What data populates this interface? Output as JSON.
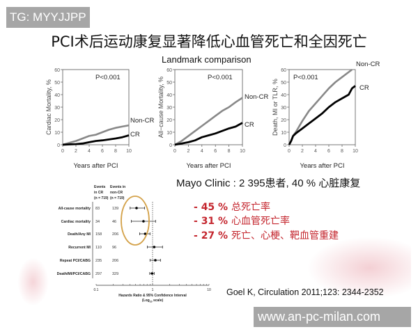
{
  "watermark_top": "TG: MYYJJPP",
  "watermark_bottom": "www.an-pc-milan.com",
  "title": "PCI术后运动康复显著降低心血管死亡和全因死亡",
  "subtitle": "Landmark comparison",
  "summary": {
    "headline": "Mayo Clinic : 2 395患者, 40 % 心脏康复",
    "bullets": [
      {
        "dash": "-",
        "value": "45 %",
        "text": "总死亡率"
      },
      {
        "dash": "-",
        "value": "31 %",
        "text": "心血管死亡率"
      },
      {
        "dash": "-",
        "value": "27 %",
        "text": "死亡、心梗、靶血管重建"
      }
    ],
    "accent_color": "#c4262e"
  },
  "citation": "Goel K, Circulation 2011;123: 2344-2352",
  "chart_data": [
    {
      "type": "line",
      "annotation": "P<0.001",
      "xlabel": "Years after PCI",
      "ylabel": "Cardiac Mortality, %",
      "xlim": [
        0,
        10
      ],
      "ylim": [
        0,
        60
      ],
      "xticks": [
        "0",
        "2",
        "4",
        "6",
        "8",
        "10"
      ],
      "yticks": [
        "0",
        "10",
        "20",
        "30",
        "40",
        "50",
        "60"
      ],
      "series": [
        {
          "name": "Non-CR",
          "color": "#888888",
          "x": [
            0,
            1,
            2,
            3,
            4,
            5,
            6,
            7,
            8,
            9,
            10
          ],
          "y": [
            0,
            1.5,
            3,
            5,
            7,
            8,
            10,
            12,
            13.5,
            14.5,
            15.5
          ]
        },
        {
          "name": "CR",
          "color": "#000000",
          "x": [
            0,
            1,
            2,
            3,
            4,
            5,
            6,
            7,
            8,
            9,
            10
          ],
          "y": [
            0,
            0.3,
            0.5,
            1,
            2,
            3,
            3.5,
            4.2,
            5,
            6,
            7.5
          ]
        }
      ]
    },
    {
      "type": "line",
      "annotation": "P<0.001",
      "xlabel": "Years after PCI",
      "ylabel": "All−cause Mortality, %",
      "xlim": [
        0,
        10
      ],
      "ylim": [
        0,
        60
      ],
      "xticks": [
        "0",
        "2",
        "4",
        "6",
        "8",
        "10"
      ],
      "yticks": [
        "0",
        "10",
        "20",
        "30",
        "40",
        "50",
        "60"
      ],
      "series": [
        {
          "name": "Non-CR",
          "color": "#888888",
          "x": [
            0,
            1,
            2,
            3,
            4,
            5,
            6,
            7,
            8,
            9,
            10
          ],
          "y": [
            0,
            3,
            7,
            11,
            15,
            19,
            23,
            27,
            30,
            34,
            37.5
          ]
        },
        {
          "name": "CR",
          "color": "#000000",
          "x": [
            0,
            1,
            2,
            3,
            4,
            5,
            6,
            7,
            8,
            9,
            10
          ],
          "y": [
            0,
            1,
            2,
            3.5,
            6,
            7.5,
            9,
            11,
            13,
            14.5,
            17.5
          ]
        }
      ]
    },
    {
      "type": "line",
      "annotation": "P<0.001",
      "xlabel": "Years after PCI",
      "ylabel": "Death, MI or TLR, %",
      "xlim": [
        0,
        10
      ],
      "ylim": [
        0,
        60
      ],
      "xticks": [
        "0",
        "2",
        "4",
        "6",
        "8",
        "10"
      ],
      "yticks": [
        "0",
        "10",
        "20",
        "30",
        "40",
        "50",
        "60"
      ],
      "series": [
        {
          "name": "Non-CR",
          "color": "#888888",
          "x": [
            0,
            0.3,
            0.6,
            1,
            2,
            3,
            4,
            5,
            6,
            7,
            8,
            9,
            9.5
          ],
          "y": [
            0,
            3,
            7,
            10,
            19,
            27,
            33,
            39,
            45,
            50,
            54,
            58,
            60
          ]
        },
        {
          "name": "CR",
          "color": "#000000",
          "x": [
            0,
            0.3,
            0.6,
            1,
            2,
            3,
            4,
            5,
            6,
            7,
            8,
            9,
            9.5,
            10
          ],
          "y": [
            0,
            3,
            7,
            9,
            13,
            17,
            21,
            25,
            30,
            34,
            37,
            40,
            45,
            47
          ]
        }
      ]
    },
    {
      "type": "forest",
      "xlabel": "Hazards Ratio & 95% Confidence Interval",
      "xlabel_sub": [
        "(Log",
        "10",
        " scale)"
      ],
      "xscale": "log",
      "xlim": [
        0.1,
        10
      ],
      "xticks": [
        "0.1",
        "1",
        "10"
      ],
      "column_headers": [
        [
          "Events",
          "in CR",
          "(n = 719)"
        ],
        [
          "Events in",
          "non-CR",
          "(n = 719)"
        ]
      ],
      "highlight_color": "#d4a24a",
      "rows": [
        {
          "label": "All-cause mortality",
          "events_cr": "83",
          "events_noncr": "139",
          "hr": 0.52,
          "ci": [
            0.4,
            0.72
          ]
        },
        {
          "label": "Cardiac mortality",
          "events_cr": "34",
          "events_noncr": "46",
          "hr": 0.69,
          "ci": [
            0.42,
            1.13
          ]
        },
        {
          "label": "Death/Any MI",
          "events_cr": "158",
          "events_noncr": "206",
          "hr": 0.74,
          "ci": [
            0.59,
            0.9
          ]
        },
        {
          "label": "Recurrent MI",
          "events_cr": "110",
          "events_noncr": "96",
          "hr": 1.07,
          "ci": [
            0.81,
            1.5
          ]
        },
        {
          "label": "Repeat PCI/CABG",
          "events_cr": "235",
          "events_noncr": "206",
          "hr": 1.12,
          "ci": [
            0.9,
            1.38
          ]
        },
        {
          "label": "Death/MI/PCI/CABG",
          "events_cr": "297",
          "events_noncr": "329",
          "hr": 0.98,
          "ci": [
            0.89,
            1.07
          ]
        }
      ]
    }
  ]
}
